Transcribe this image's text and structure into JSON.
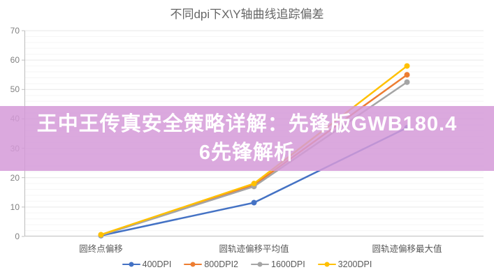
{
  "title": "不同dpi下X\\Y轴曲线追踪偏差",
  "overlay": {
    "line1": "王中王传真安全策略详解：先锋版GWB180.4",
    "line2": "6先锋解析",
    "background_rgba": "rgba(213,154,216,0.85)",
    "text_color": "#ffffff"
  },
  "chart_data": {
    "type": "line",
    "title": "不同dpi下X\\Y轴曲线追踪偏差",
    "categories": [
      "圆终点偏移",
      "圆轨迹偏移平均值",
      "圆轨迹偏移最大值"
    ],
    "series": [
      {
        "name": "400DPI",
        "color": "#4472c4",
        "values": [
          0.3,
          11.5,
          37
        ]
      },
      {
        "name": "800DPI2",
        "color": "#ed7d31",
        "values": [
          0.5,
          17.5,
          55
        ]
      },
      {
        "name": "1600DPI",
        "color": "#a5a5a5",
        "values": [
          0.4,
          17,
          52.5
        ]
      },
      {
        "name": "3200DPI",
        "color": "#ffc000",
        "values": [
          0.6,
          18,
          58
        ]
      }
    ],
    "xlabel": "",
    "ylabel": "",
    "ylim": [
      0,
      70
    ],
    "ytick_step": 10,
    "yticks": [
      0,
      10,
      20,
      30,
      40,
      50,
      60,
      70
    ],
    "minor_grid_step": 2,
    "grid": true,
    "legend_position": "bottom",
    "axis_color": "#bdbdbd",
    "major_grid_color": "#e7e7e7",
    "minor_grid_color": "#f5f5f5"
  }
}
